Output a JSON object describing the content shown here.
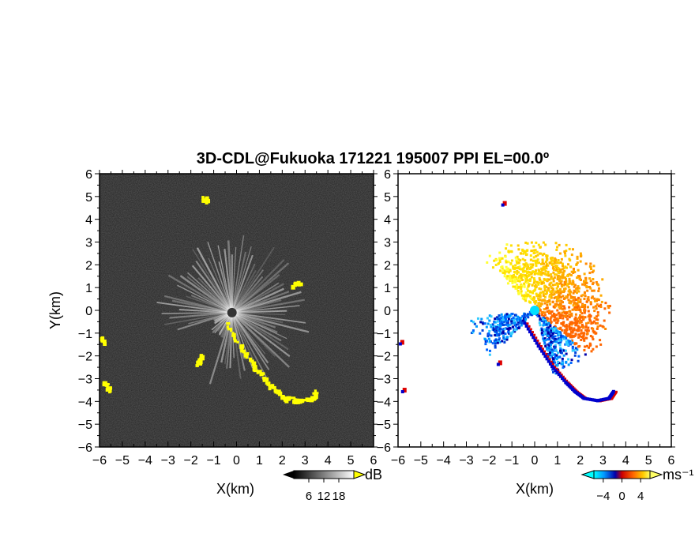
{
  "chart_data": {
    "title": "3D-CDL@Fukuoka 171221 195007 PPI EL=00.0º",
    "panels": [
      {
        "type": "heatmap",
        "quantity": "reflectivity / SNR",
        "xlabel": "X(km)",
        "ylabel": "Y(km)",
        "xlim": [
          -6,
          6
        ],
        "ylim": [
          -6,
          6
        ],
        "xticks": [
          "−6",
          "−5",
          "−4",
          "−3",
          "−2",
          "−1",
          "0",
          "1",
          "2",
          "3",
          "4",
          "5",
          "6"
        ],
        "yticks": [
          "6",
          "5",
          "4",
          "3",
          "2",
          "1",
          "0",
          "−1",
          "−2",
          "−3",
          "−4",
          "−5",
          "−6"
        ],
        "colorbar": {
          "unit": "dB",
          "ticks": [
            "6",
            "12",
            "18"
          ],
          "range": [
            0,
            24
          ],
          "colors": [
            "#000000",
            "#ffffff"
          ],
          "overflow_color": "#ffff00"
        },
        "background_color": "#222222",
        "features": [
          {
            "kind": "radial-streaks",
            "center": [
              -0.2,
              -0.1
            ],
            "extent_km": 3.5,
            "color": "#ffffff"
          },
          {
            "kind": "hard-target-yellow",
            "path": [
              [
                -0.4,
                -0.6
              ],
              [
                0.2,
                -1.6
              ],
              [
                0.8,
                -2.5
              ],
              [
                1.4,
                -3.2
              ],
              [
                1.8,
                -3.6
              ],
              [
                2.2,
                -3.9
              ],
              [
                2.8,
                -4.0
              ],
              [
                3.3,
                -3.9
              ],
              [
                3.5,
                -3.6
              ]
            ]
          },
          {
            "kind": "hard-target-yellow",
            "path": [
              [
                -5.9,
                -1.2
              ],
              [
                -5.8,
                -1.4
              ]
            ]
          },
          {
            "kind": "hard-target-yellow",
            "path": [
              [
                -5.8,
                -3.2
              ],
              [
                -5.5,
                -3.5
              ]
            ]
          },
          {
            "kind": "hard-target-yellow",
            "path": [
              [
                -1.5,
                -2.0
              ],
              [
                -1.7,
                -2.4
              ]
            ]
          },
          {
            "kind": "hard-target-yellow",
            "path": [
              [
                2.5,
                1.1
              ],
              [
                2.8,
                1.2
              ]
            ]
          },
          {
            "kind": "hard-target-yellow",
            "path": [
              [
                -1.4,
                4.9
              ],
              [
                -1.3,
                4.8
              ]
            ]
          }
        ]
      },
      {
        "type": "heatmap",
        "quantity": "radial velocity",
        "xlabel": "X(km)",
        "xlim": [
          -6,
          6
        ],
        "ylim": [
          -6,
          6
        ],
        "xticks": [
          "−6",
          "−5",
          "−4",
          "−3",
          "−2",
          "−1",
          "0",
          "1",
          "2",
          "3",
          "4",
          "5",
          "6"
        ],
        "yticks": [
          "6",
          "5",
          "4",
          "3",
          "2",
          "1",
          "0",
          "−1",
          "−2",
          "−3",
          "−4",
          "−5",
          "−6"
        ],
        "colorbar": {
          "unit": "ms⁻¹",
          "ticks": [
            "−4",
            "0",
            "4"
          ],
          "range": [
            -6,
            6
          ],
          "colors": [
            "#00ffff",
            "#0066ff",
            "#0000aa",
            "#cc0000",
            "#ff6600",
            "#ffcc00",
            "#ffff66"
          ]
        },
        "background_color": "#ffffff",
        "features": [
          {
            "kind": "velocity-sector",
            "angles_deg": [
              -40,
              135
            ],
            "radius_km": 3.4,
            "sign": "positive"
          },
          {
            "kind": "velocity-sector",
            "angles_deg": [
              -75,
              -40
            ],
            "radius_km": 3.0,
            "sign": "negative"
          },
          {
            "kind": "velocity-sector",
            "angles_deg": [
              185,
              225
            ],
            "radius_km": 3.0,
            "sign": "negative"
          },
          {
            "kind": "marker",
            "at": [
              0,
              0
            ],
            "color": "#00e0ff"
          }
        ]
      }
    ]
  }
}
